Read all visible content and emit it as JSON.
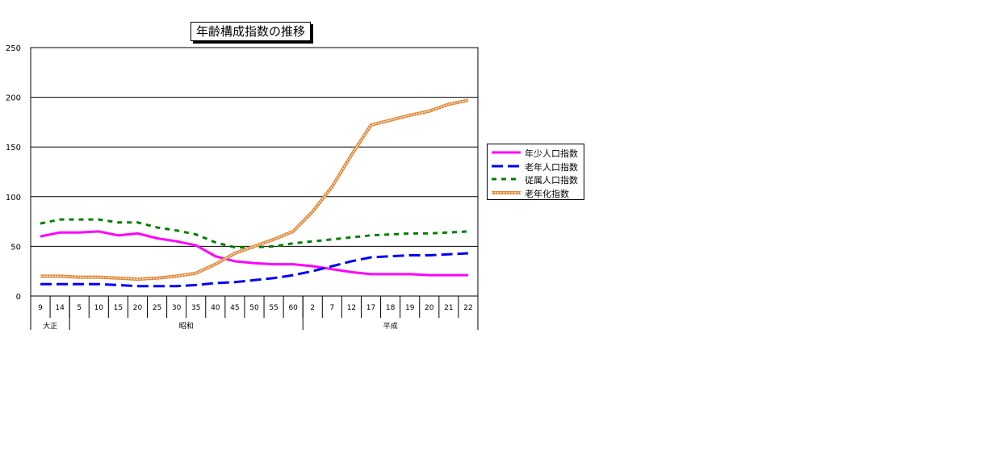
{
  "chart_data": {
    "type": "line",
    "title": "年齢構成指数の推移",
    "xlabel": "",
    "ylabel": "",
    "ylim": [
      0,
      250
    ],
    "y_ticks": [
      "0",
      "50",
      "100",
      "150",
      "200",
      "250"
    ],
    "categories": [
      "9",
      "14",
      "5",
      "10",
      "15",
      "20",
      "25",
      "30",
      "35",
      "40",
      "45",
      "50",
      "55",
      "60",
      "2",
      "7",
      "12",
      "17",
      "18",
      "19",
      "20",
      "21",
      "22"
    ],
    "eras": [
      {
        "label": "大正",
        "count": 2
      },
      {
        "label": "昭和",
        "count": 12
      },
      {
        "label": "平成",
        "count": 9
      }
    ],
    "grid": true,
    "legend_position": "right",
    "series": [
      {
        "name": "年少人口指数",
        "color": "#ff00ff",
        "dash": "solid",
        "values": [
          60,
          64,
          64,
          65,
          61,
          63,
          58,
          55,
          51,
          40,
          35,
          33,
          32,
          32,
          30,
          27,
          24,
          22,
          22,
          22,
          21,
          21,
          21
        ]
      },
      {
        "name": "老年人口指数",
        "color": "#0000ff",
        "dash": "long",
        "values": [
          12,
          12,
          12,
          12,
          11,
          10,
          10,
          10,
          11,
          13,
          14,
          16,
          18,
          21,
          25,
          30,
          35,
          39,
          40,
          41,
          41,
          42,
          43
        ]
      },
      {
        "name": "従属人口指数",
        "color": "#008000",
        "dash": "short",
        "values": [
          73,
          77,
          77,
          77,
          74,
          74,
          69,
          66,
          62,
          54,
          49,
          49,
          50,
          53,
          55,
          57,
          59,
          61,
          62,
          63,
          63,
          64,
          65
        ]
      },
      {
        "name": "老年化指数",
        "color": "#e08a3a",
        "dash": "dotted",
        "values": [
          20,
          20,
          19,
          19,
          18,
          17,
          18,
          20,
          23,
          32,
          43,
          50,
          57,
          65,
          85,
          110,
          142,
          172,
          177,
          182,
          186,
          193,
          197
        ]
      }
    ]
  }
}
